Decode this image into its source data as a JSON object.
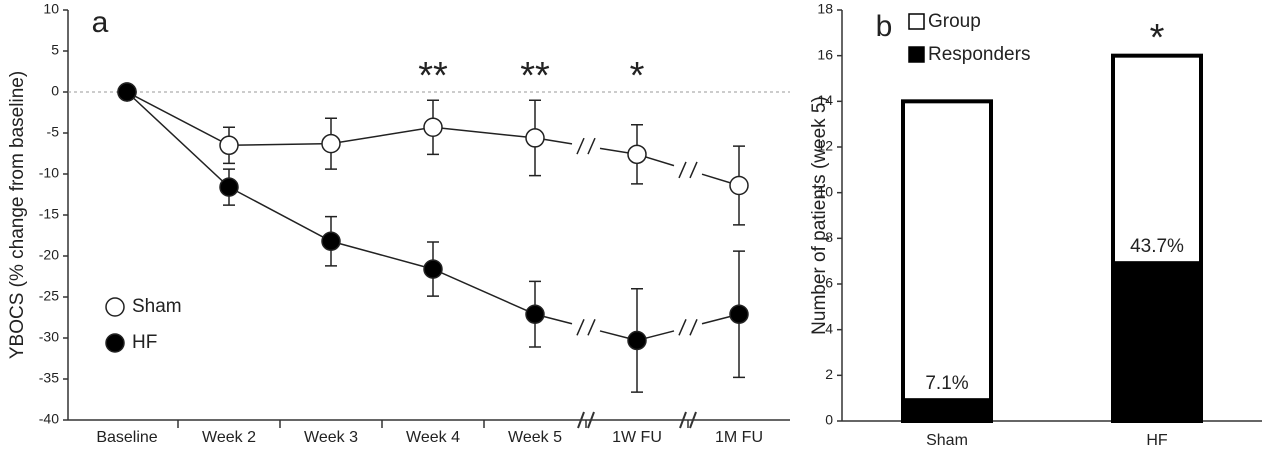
{
  "chart_data": [
    {
      "type": "line",
      "label": "a",
      "y_label": "YBOCS (% change from baseline)",
      "categories": [
        "Baseline",
        "Week 2",
        "Week 3",
        "Week 4",
        "Week 5",
        "1W FU",
        "1M FU"
      ],
      "ylim": [
        -40,
        10
      ],
      "yticks": [
        -40,
        -35,
        -30,
        -25,
        -20,
        -15,
        -10,
        -5,
        0,
        5,
        10
      ],
      "series": [
        {
          "name": "Sham",
          "color": "#ffffff",
          "values": [
            0,
            -6.5,
            -6.3,
            -4.3,
            -5.6,
            -7.6,
            -11.4
          ],
          "errors": [
            null,
            2.2,
            3.1,
            3.3,
            4.6,
            3.6,
            4.8
          ]
        },
        {
          "name": "HF",
          "color": "#000000",
          "values": [
            0,
            -11.6,
            -18.2,
            -21.6,
            -27.1,
            -30.3,
            -27.1
          ],
          "errors": [
            null,
            2.2,
            3.0,
            3.3,
            4.0,
            6.3,
            7.7
          ]
        }
      ],
      "annotations": [
        {
          "text": "**",
          "x": "Week 4"
        },
        {
          "text": "**",
          "x": "Week 5"
        },
        {
          "text": "*",
          "x": "1W FU"
        }
      ],
      "legend": "lower left"
    },
    {
      "type": "bar",
      "label": "b",
      "y_label": "Number of patients (week 5)",
      "categories": [
        "Sham",
        "HF"
      ],
      "ylim": [
        0,
        18
      ],
      "yticks": [
        0,
        2,
        4,
        6,
        8,
        10,
        12,
        14,
        16,
        18
      ],
      "series": [
        {
          "name": "Group",
          "color": "#ffffff",
          "values": [
            14,
            16
          ]
        },
        {
          "name": "Responders",
          "color": "#000000",
          "values": [
            1,
            7
          ]
        }
      ],
      "percent_labels": [
        "7.1%",
        "43.7%"
      ],
      "annotations": [
        {
          "text": "*",
          "x": "HF"
        }
      ],
      "legend": "upper left"
    }
  ]
}
